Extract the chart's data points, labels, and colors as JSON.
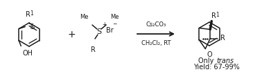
{
  "bg_color": "#ffffff",
  "figsize": [
    3.78,
    1.04
  ],
  "dpi": 100,
  "text_color": "#1a1a1a",
  "line_color": "#1a1a1a",
  "reagent_line1": "Cs₂CO₃",
  "reagent_line2": "CH₂Cl₂, RT",
  "label_yield": "Yield: 67-99%",
  "font_size_main": 7.0,
  "font_size_small": 5.5,
  "font_size_sup": 4.5
}
